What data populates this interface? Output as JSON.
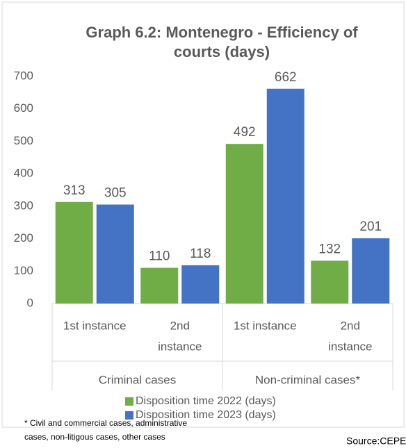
{
  "chart_data": {
    "type": "bar",
    "title": [
      "Graph 6.2: Montenegro - Efficiency of",
      "courts (days)"
    ],
    "categories": [
      [
        "1st instance"
      ],
      [
        "2nd",
        "instance"
      ],
      [
        "1st instance"
      ],
      [
        "2nd",
        "instance"
      ]
    ],
    "groups": [
      "Criminal cases",
      "Non-criminal cases*"
    ],
    "series": [
      {
        "name": "Disposition time 2022 (days)",
        "color": "#70ad47",
        "values": [
          313,
          110,
          492,
          132
        ]
      },
      {
        "name": "Disposition time 2023 (days)",
        "color": "#4472c4",
        "values": [
          305,
          118,
          662,
          201
        ]
      }
    ],
    "ylim": [
      0,
      700
    ],
    "yticks": [
      0,
      100,
      200,
      300,
      400,
      500,
      600,
      700
    ],
    "footnote": [
      "* Civil and commercial cases, administrative",
      "cases, non-litigous cases, other cases"
    ],
    "source": "Source:CEPEJ"
  }
}
